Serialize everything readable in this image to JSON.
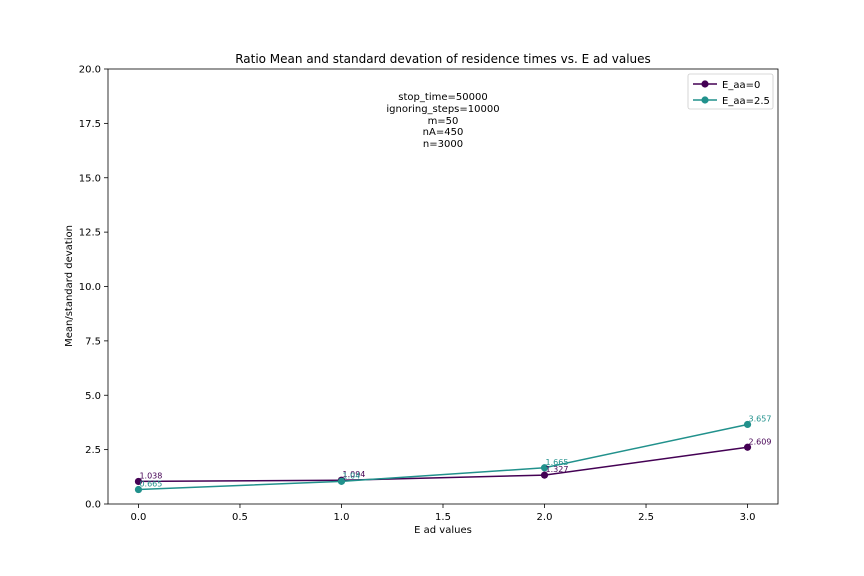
{
  "chart_data": {
    "type": "line",
    "title": "Ratio Mean and standard devation of residence times vs. E ad values",
    "xlabel": "E ad values",
    "ylabel": "Mean/standard devation",
    "xlim": [
      -0.15,
      3.15
    ],
    "ylim": [
      0,
      20
    ],
    "xticks": [
      0.0,
      0.5,
      1.0,
      1.5,
      2.0,
      2.5,
      3.0
    ],
    "xtick_labels": [
      "0.0",
      "0.5",
      "1.0",
      "1.5",
      "2.0",
      "2.5",
      "3.0"
    ],
    "yticks": [
      0,
      2.5,
      5,
      7.5,
      10,
      12.5,
      15,
      17.5,
      20
    ],
    "ytick_labels": [
      "0.0",
      "2.5",
      "5.0",
      "7.5",
      "10.0",
      "12.5",
      "15.0",
      "17.5",
      "20.0"
    ],
    "grid": false,
    "legend_position": "top-right",
    "annotation_lines": [
      "stop_time=50000",
      "ignoring_steps=10000",
      "m=50",
      "nA=450",
      "n=3000"
    ],
    "x": [
      0,
      1,
      2,
      3
    ],
    "series": [
      {
        "name": "E_aa=0",
        "color": "#440154",
        "values": [
          1.038,
          1.094,
          1.327,
          2.609
        ],
        "labels": [
          "1.038",
          "1.094",
          "1.327",
          "2.609"
        ]
      },
      {
        "name": "E_aa=2.5",
        "color": "#21918c",
        "values": [
          0.665,
          1.04,
          1.665,
          3.657
        ],
        "labels": [
          "0.665",
          "1.04",
          "1.665",
          "3.657"
        ]
      }
    ]
  }
}
